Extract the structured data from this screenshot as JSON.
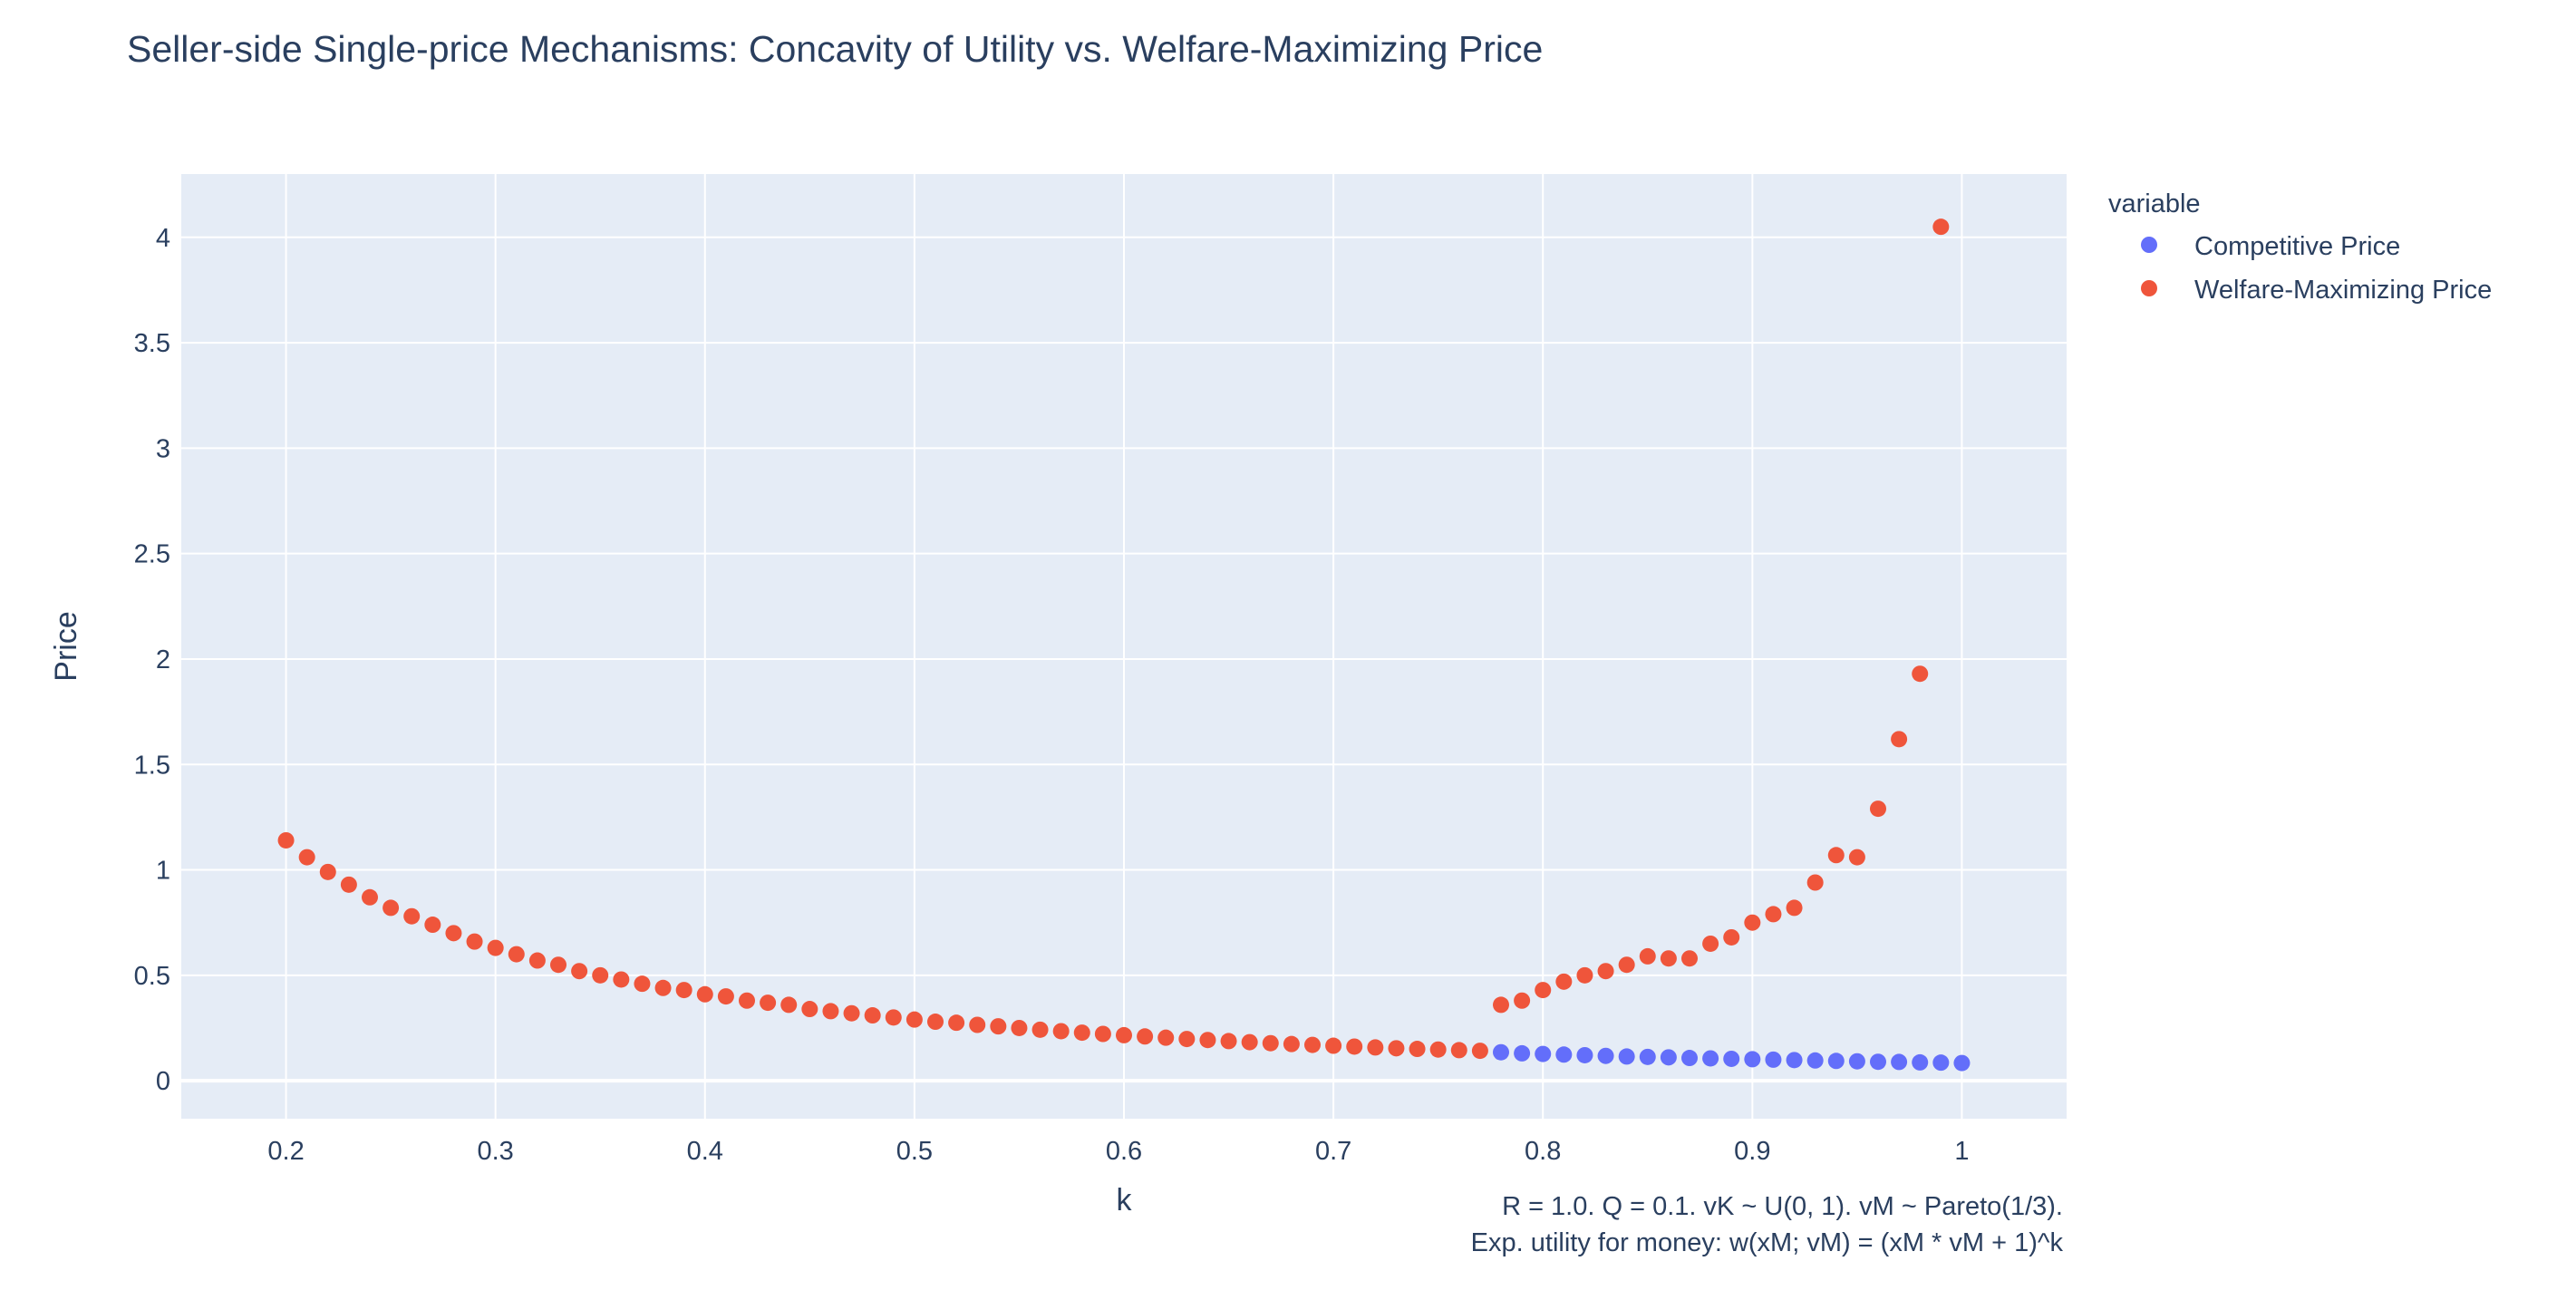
{
  "chart_data": {
    "type": "scatter",
    "title": "Seller-side Single-price Mechanisms: Concavity of Utility vs. Welfare-Maximizing Price",
    "xlabel": "k",
    "ylabel": "Price",
    "xlim": [
      0.15,
      1.05
    ],
    "ylim": [
      -0.18,
      4.3
    ],
    "xticks": [
      0.2,
      0.3,
      0.4,
      0.5,
      0.6,
      0.7,
      0.8,
      0.9,
      1
    ],
    "xtick_labels": [
      "0.2",
      "0.3",
      "0.4",
      "0.5",
      "0.6",
      "0.7",
      "0.8",
      "0.9",
      "1"
    ],
    "yticks": [
      0,
      0.5,
      1,
      1.5,
      2,
      2.5,
      3,
      3.5,
      4
    ],
    "ytick_labels": [
      "0",
      "0.5",
      "1",
      "1.5",
      "2",
      "2.5",
      "3",
      "3.5",
      "4"
    ],
    "grid": true,
    "legend_title": "variable",
    "legend_position": "top-right outside plot",
    "annotation_lines": [
      "R = 1.0. Q = 0.1. vK ~ U(0, 1). vM ~ Pareto(1/3).",
      "Exp. utility for money: w(xM; vM) = (xM * vM + 1)^k"
    ],
    "series": [
      {
        "name": "Competitive Price",
        "color": "#636efa",
        "points": [
          [
            0.78,
            0.135
          ],
          [
            0.79,
            0.13
          ],
          [
            0.8,
            0.127
          ],
          [
            0.81,
            0.124
          ],
          [
            0.82,
            0.121
          ],
          [
            0.83,
            0.118
          ],
          [
            0.84,
            0.115
          ],
          [
            0.85,
            0.113
          ],
          [
            0.86,
            0.111
          ],
          [
            0.87,
            0.108
          ],
          [
            0.88,
            0.106
          ],
          [
            0.89,
            0.104
          ],
          [
            0.9,
            0.102
          ],
          [
            0.91,
            0.1
          ],
          [
            0.92,
            0.098
          ],
          [
            0.93,
            0.096
          ],
          [
            0.94,
            0.094
          ],
          [
            0.95,
            0.092
          ],
          [
            0.96,
            0.09
          ],
          [
            0.97,
            0.089
          ],
          [
            0.98,
            0.087
          ],
          [
            0.99,
            0.086
          ],
          [
            1.0,
            0.084
          ]
        ]
      },
      {
        "name": "Welfare-Maximizing Price",
        "color": "#ef553b",
        "points": [
          [
            0.2,
            1.14
          ],
          [
            0.21,
            1.06
          ],
          [
            0.22,
            0.99
          ],
          [
            0.23,
            0.93
          ],
          [
            0.24,
            0.87
          ],
          [
            0.25,
            0.82
          ],
          [
            0.26,
            0.78
          ],
          [
            0.27,
            0.74
          ],
          [
            0.28,
            0.7
          ],
          [
            0.29,
            0.66
          ],
          [
            0.3,
            0.63
          ],
          [
            0.31,
            0.6
          ],
          [
            0.32,
            0.57
          ],
          [
            0.33,
            0.55
          ],
          [
            0.34,
            0.52
          ],
          [
            0.35,
            0.5
          ],
          [
            0.36,
            0.48
          ],
          [
            0.37,
            0.46
          ],
          [
            0.38,
            0.44
          ],
          [
            0.39,
            0.43
          ],
          [
            0.4,
            0.41
          ],
          [
            0.41,
            0.4
          ],
          [
            0.42,
            0.38
          ],
          [
            0.43,
            0.37
          ],
          [
            0.44,
            0.36
          ],
          [
            0.45,
            0.34
          ],
          [
            0.46,
            0.33
          ],
          [
            0.47,
            0.32
          ],
          [
            0.48,
            0.31
          ],
          [
            0.49,
            0.3
          ],
          [
            0.5,
            0.29
          ],
          [
            0.51,
            0.28
          ],
          [
            0.52,
            0.275
          ],
          [
            0.53,
            0.265
          ],
          [
            0.54,
            0.258
          ],
          [
            0.55,
            0.25
          ],
          [
            0.56,
            0.242
          ],
          [
            0.57,
            0.235
          ],
          [
            0.58,
            0.228
          ],
          [
            0.59,
            0.222
          ],
          [
            0.6,
            0.216
          ],
          [
            0.61,
            0.21
          ],
          [
            0.62,
            0.204
          ],
          [
            0.63,
            0.198
          ],
          [
            0.64,
            0.193
          ],
          [
            0.65,
            0.188
          ],
          [
            0.66,
            0.183
          ],
          [
            0.67,
            0.178
          ],
          [
            0.68,
            0.174
          ],
          [
            0.69,
            0.17
          ],
          [
            0.7,
            0.166
          ],
          [
            0.71,
            0.162
          ],
          [
            0.72,
            0.158
          ],
          [
            0.73,
            0.154
          ],
          [
            0.74,
            0.151
          ],
          [
            0.75,
            0.148
          ],
          [
            0.76,
            0.145
          ],
          [
            0.77,
            0.142
          ],
          [
            0.78,
            0.36
          ],
          [
            0.79,
            0.38
          ],
          [
            0.8,
            0.43
          ],
          [
            0.81,
            0.47
          ],
          [
            0.82,
            0.5
          ],
          [
            0.83,
            0.52
          ],
          [
            0.84,
            0.55
          ],
          [
            0.85,
            0.59
          ],
          [
            0.86,
            0.58
          ],
          [
            0.87,
            0.58
          ],
          [
            0.88,
            0.65
          ],
          [
            0.89,
            0.68
          ],
          [
            0.9,
            0.75
          ],
          [
            0.91,
            0.79
          ],
          [
            0.92,
            0.82
          ],
          [
            0.93,
            0.94
          ],
          [
            0.94,
            1.07
          ],
          [
            0.95,
            1.06
          ],
          [
            0.96,
            1.29
          ],
          [
            0.97,
            1.62
          ],
          [
            0.98,
            1.93
          ],
          [
            0.99,
            4.05
          ]
        ]
      }
    ]
  }
}
